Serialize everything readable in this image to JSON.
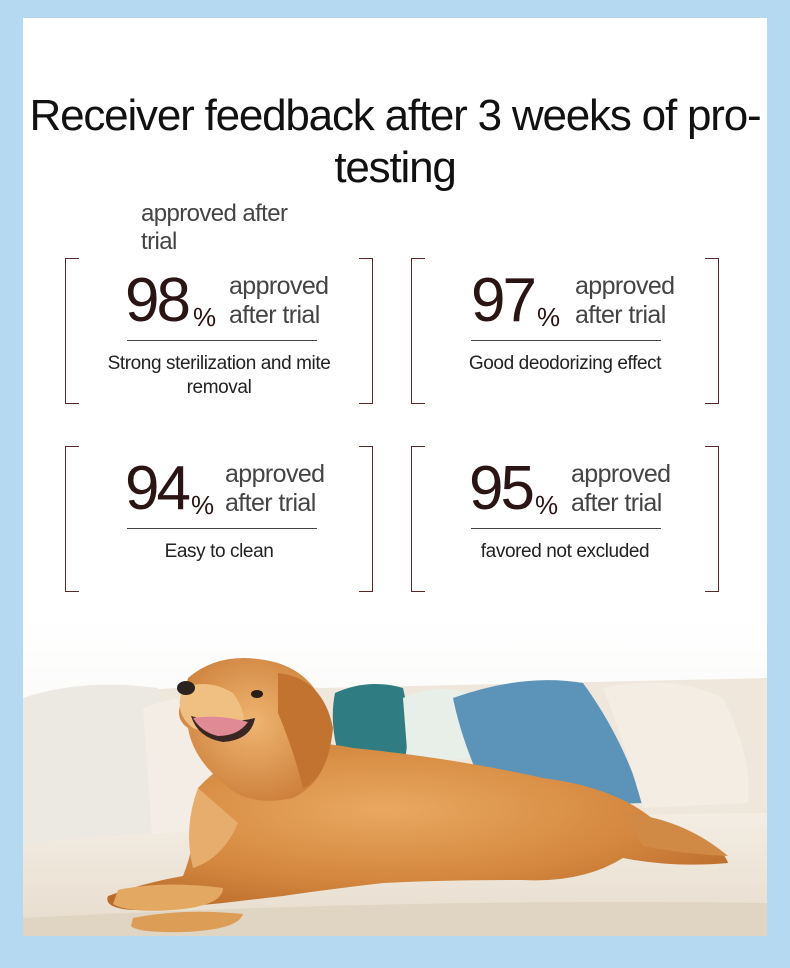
{
  "headline": "Receiver feedback after 3 weeks of pro-testing",
  "floating_label": "approved after trial",
  "stats": [
    {
      "value": "98",
      "sign": "%",
      "approved_label": "approved after trial",
      "description": "Strong sterilization and mite removal"
    },
    {
      "value": "97",
      "sign": "%",
      "approved_label": "approved after trial",
      "description": "Good deodorizing effect"
    },
    {
      "value": "94",
      "sign": "%",
      "approved_label": "approved after trial",
      "description": "Easy to clean"
    },
    {
      "value": "95",
      "sign": "%",
      "approved_label": "approved after trial",
      "description": "favored not excluded"
    }
  ],
  "colors": {
    "frame": "#b5d9f1",
    "accent_line": "#5a2a2a",
    "number": "#2a1414"
  },
  "photo": {
    "subject": "golden-retriever-on-sofa"
  }
}
